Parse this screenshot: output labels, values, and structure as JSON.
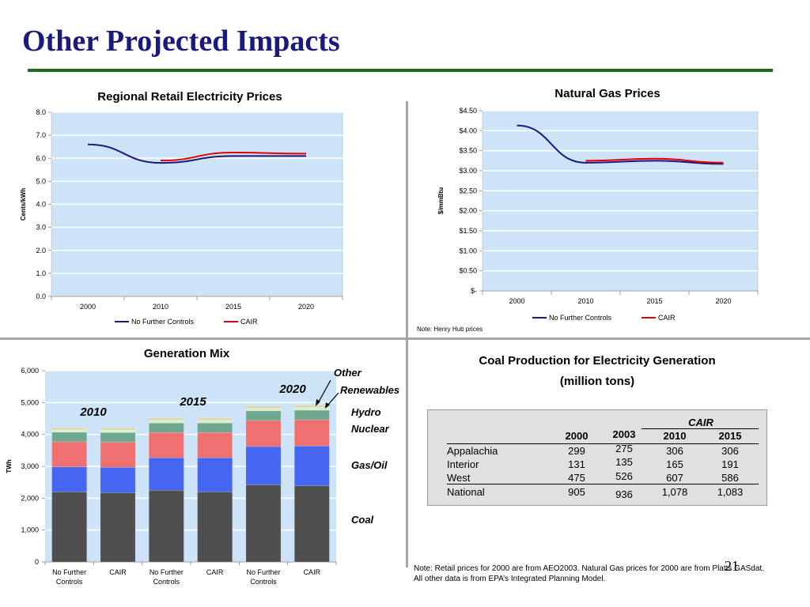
{
  "slide": {
    "title": "Other Projected Impacts",
    "page_number": "21",
    "bottom_note": "Note: Retail prices for 2000 are from AEO2003. Natural Gas prices for 2000 are from Platts GASdat.  All other data is from EPA’s Integrated Planning Model."
  },
  "colors": {
    "title_blue": "#1a1a7a",
    "rule_green": "#1f6a1f",
    "plot_bg": "#cde4f8",
    "no_further_controls": "#1a1a7a",
    "cair": "#e00000"
  },
  "chart_data": [
    {
      "id": "retail",
      "type": "line",
      "title": "Regional Retail Electricity Prices",
      "ylabel": "Cents/kWh",
      "xlabel": "",
      "x": [
        "2000",
        "2010",
        "2015",
        "2020"
      ],
      "ylim": [
        0,
        8
      ],
      "yticks": [
        "0.0",
        "1.0",
        "2.0",
        "3.0",
        "4.0",
        "5.0",
        "6.0",
        "7.0",
        "8.0"
      ],
      "grid": true,
      "legend": "bottom",
      "series": [
        {
          "name": "No Further Controls",
          "values": [
            6.6,
            5.8,
            6.1,
            6.1
          ]
        },
        {
          "name": "CAIR",
          "values": [
            null,
            5.9,
            6.25,
            6.2
          ]
        }
      ]
    },
    {
      "id": "gas",
      "type": "line",
      "title": "Natural Gas Prices",
      "ylabel": "$/mmBtu",
      "xlabel": "",
      "x": [
        "2000",
        "2010",
        "2015",
        "2020"
      ],
      "ylim": [
        0,
        4.5
      ],
      "yticks": [
        "$-",
        "$0.50",
        "$1.00",
        "$1.50",
        "$2.00",
        "$2.50",
        "$3.00",
        "$3.50",
        "$4.00",
        "$4.50"
      ],
      "grid": true,
      "legend": "bottom",
      "note": "Note: Henry Hub prices",
      "series": [
        {
          "name": "No Further Controls",
          "values": [
            4.13,
            3.2,
            3.25,
            3.17
          ]
        },
        {
          "name": "CAIR",
          "values": [
            null,
            3.25,
            3.3,
            3.2
          ]
        }
      ]
    },
    {
      "id": "genmix",
      "type": "bar",
      "stacked": true,
      "title": "Generation Mix",
      "ylabel": "TWh",
      "xlabel": "",
      "ylim": [
        0,
        6000
      ],
      "yticks": [
        "0",
        "1,000",
        "2,000",
        "3,000",
        "4,000",
        "5,000",
        "6,000"
      ],
      "grid": true,
      "categories": [
        "No Further Controls",
        "CAIR",
        "No Further Controls",
        "CAIR",
        "No Further Controls",
        "CAIR"
      ],
      "year_labels": [
        "2010",
        "2015",
        "2020"
      ],
      "series": [
        {
          "name": "Coal",
          "color": "#4f4f4f",
          "values": [
            2200,
            2170,
            2250,
            2200,
            2420,
            2390
          ]
        },
        {
          "name": "Gas/Oil",
          "color": "#4466f0",
          "values": [
            780,
            800,
            1020,
            1070,
            1200,
            1250
          ]
        },
        {
          "name": "Nuclear",
          "color": "#ef7070",
          "values": [
            790,
            790,
            790,
            790,
            820,
            820
          ]
        },
        {
          "name": "Hydro",
          "color": "#6fa88e",
          "values": [
            300,
            300,
            300,
            300,
            300,
            300
          ]
        },
        {
          "name": "Renewables",
          "color": "#d8f0d0",
          "values": [
            80,
            80,
            90,
            90,
            90,
            90
          ]
        },
        {
          "name": "Other",
          "color": "#e0d5a0",
          "values": [
            60,
            60,
            60,
            60,
            60,
            60
          ]
        }
      ],
      "labels": {
        "other": "Other",
        "renewables": "Renewables",
        "hydro": "Hydro",
        "nuclear": "Nuclear",
        "gas_oil": "Gas/Oil",
        "coal": "Coal"
      }
    },
    {
      "id": "coal",
      "type": "table",
      "title_line1": "Coal Production for Electricity Generation",
      "title_line2": "(million tons)",
      "group_header": "CAIR",
      "columns": [
        "2000",
        "2003",
        "2010",
        "2015"
      ],
      "rows": [
        {
          "label": "Appalachia",
          "values": [
            "299",
            "275",
            "306",
            "306"
          ]
        },
        {
          "label": "Interior",
          "values": [
            "131",
            "135",
            "165",
            "191"
          ]
        },
        {
          "label": "West",
          "values": [
            "475",
            "526",
            "607",
            "586"
          ]
        },
        {
          "label": "National",
          "values": [
            "905",
            "936",
            "1,078",
            "1,083"
          ]
        }
      ]
    }
  ]
}
